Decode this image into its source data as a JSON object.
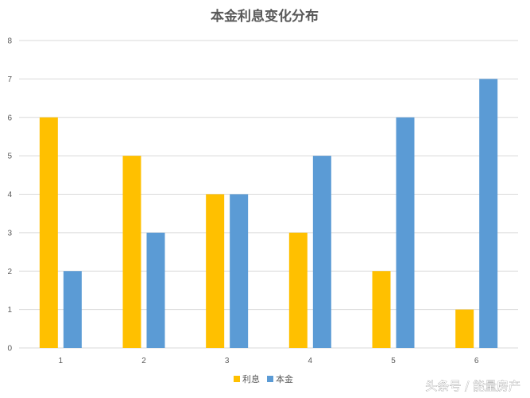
{
  "chart_data": {
    "type": "bar",
    "title": "本金利息变化分布",
    "categories": [
      "1",
      "2",
      "3",
      "4",
      "5",
      "6"
    ],
    "series": [
      {
        "name": "利息",
        "values": [
          6,
          5,
          4,
          3,
          2,
          1
        ],
        "color": "#FFC000"
      },
      {
        "name": "本金",
        "values": [
          2,
          3,
          4,
          5,
          6,
          7
        ],
        "color": "#5B9BD5"
      }
    ],
    "ylim": [
      0,
      8
    ],
    "yticks": [
      "0",
      "1",
      "2",
      "3",
      "4",
      "5",
      "6",
      "7",
      "8"
    ],
    "grid": true,
    "legend": "bottom"
  },
  "watermark": "头条号 / 能量房产"
}
